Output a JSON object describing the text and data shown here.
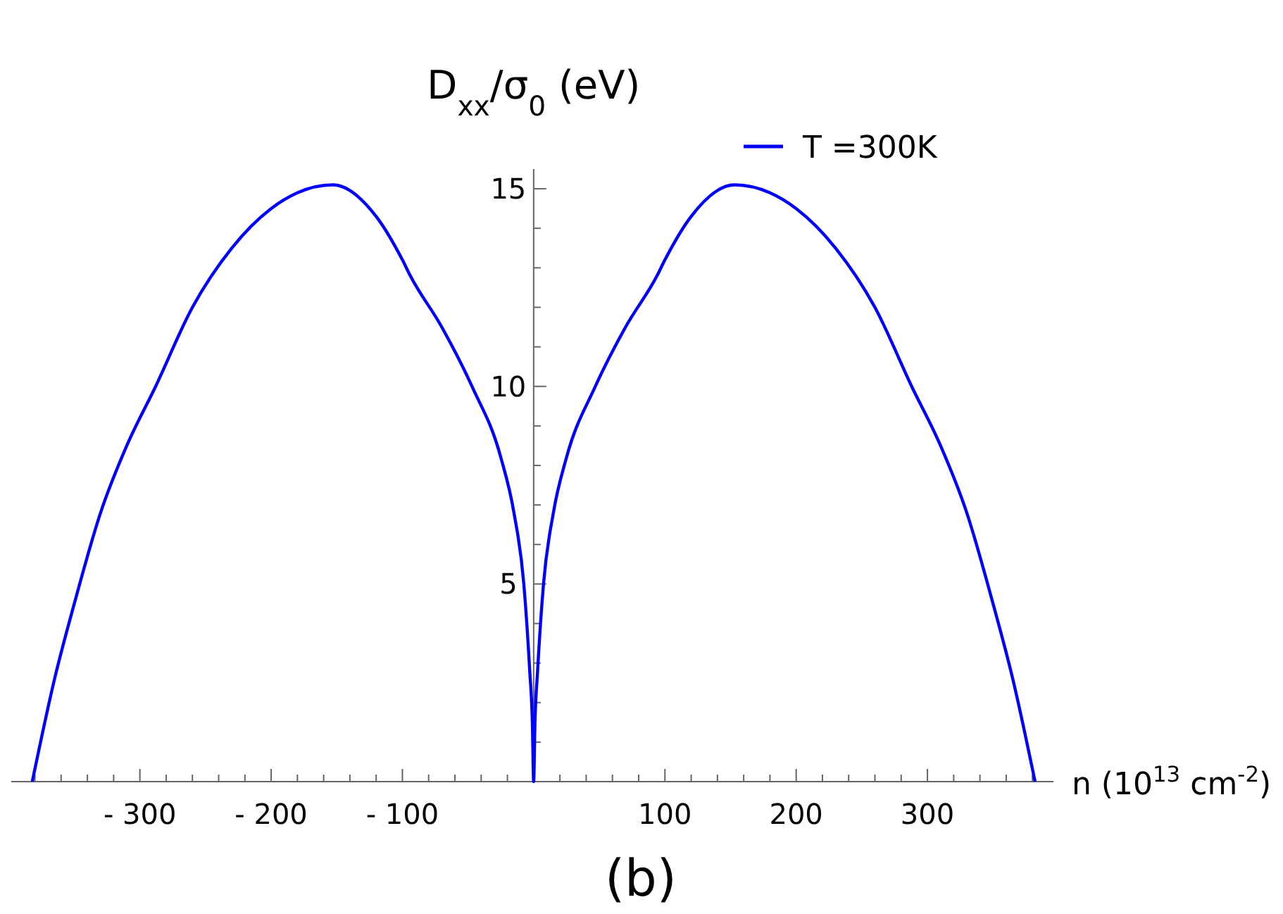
{
  "chart_data": {
    "type": "line",
    "ylabel": "D$_{xx}$/σ$_{0}$ (eV)",
    "xlabel": "n (10$^{13}$ cm$^{-2}$)",
    "annotations": [
      "(b)"
    ],
    "legend": "top right",
    "xlim": [
      -398,
      396
    ],
    "ylim": [
      0,
      15.5
    ],
    "xticks": [
      {
        "value": -380,
        "label": null
      },
      {
        "value": -360,
        "label": null
      },
      {
        "value": -340,
        "label": null
      },
      {
        "value": -320,
        "label": null
      },
      {
        "value": -300,
        "label": "- 300"
      },
      {
        "value": -280,
        "label": null
      },
      {
        "value": -260,
        "label": null
      },
      {
        "value": -240,
        "label": null
      },
      {
        "value": -220,
        "label": null
      },
      {
        "value": -200,
        "label": "- 200"
      },
      {
        "value": -180,
        "label": null
      },
      {
        "value": -160,
        "label": null
      },
      {
        "value": -140,
        "label": null
      },
      {
        "value": -120,
        "label": null
      },
      {
        "value": -100,
        "label": "- 100"
      },
      {
        "value": -80,
        "label": null
      },
      {
        "value": -60,
        "label": null
      },
      {
        "value": -40,
        "label": null
      },
      {
        "value": -20,
        "label": null
      },
      {
        "value": 20,
        "label": null
      },
      {
        "value": 40,
        "label": null
      },
      {
        "value": 60,
        "label": null
      },
      {
        "value": 80,
        "label": null
      },
      100,
      {
        "value": 120,
        "label": null
      },
      {
        "value": 140,
        "label": null
      },
      {
        "value": 160,
        "label": null
      },
      {
        "value": 180,
        "label": null
      },
      200,
      {
        "value": 220,
        "label": null
      },
      {
        "value": 240,
        "label": null
      },
      {
        "value": 260,
        "label": null
      },
      {
        "value": 280,
        "label": null
      },
      300,
      {
        "value": 320,
        "label": null
      },
      {
        "value": 340,
        "label": null
      },
      {
        "value": 360,
        "label": null
      },
      {
        "value": 380,
        "label": null
      }
    ],
    "yticks": [
      {
        "value": 1,
        "label": null
      },
      {
        "value": 2,
        "label": null
      },
      {
        "value": 3,
        "label": null
      },
      {
        "value": 4,
        "label": null
      },
      5,
      {
        "value": 6,
        "label": null
      },
      {
        "value": 7,
        "label": null
      },
      {
        "value": 8,
        "label": null
      },
      {
        "value": 9,
        "label": null
      },
      10,
      {
        "value": 11,
        "label": null
      },
      {
        "value": 12,
        "label": null
      },
      {
        "value": 13,
        "label": null
      },
      {
        "value": 14,
        "label": null
      },
      15
    ],
    "series": [
      {
        "name": "T =300K",
        "color": "#0000ff",
        "x": [
          -382,
          -365,
          -350,
          -330,
          -310,
          -288,
          -260,
          -230,
          -200,
          -180,
          -153,
          -120,
          -100,
          -94,
          -70,
          -47,
          -25,
          -15,
          -7.5,
          -3,
          -1,
          0,
          1,
          3,
          7.5,
          15,
          25,
          47,
          70,
          94,
          100,
          120,
          153,
          180,
          200,
          230,
          260,
          288,
          310,
          330,
          350,
          365,
          382
        ],
        "values": [
          0,
          2.6,
          4.5,
          6.8,
          8.5,
          10,
          12,
          13.5,
          14.5,
          14.9,
          15.1,
          14.3,
          13.2,
          12.8,
          11.5,
          10,
          8.2,
          6.8,
          5,
          2.8,
          1.5,
          0,
          1.5,
          2.8,
          5,
          6.8,
          8.2,
          10,
          11.5,
          12.8,
          13.2,
          14.3,
          15.1,
          14.9,
          14.5,
          13.5,
          12,
          10,
          8.5,
          6.8,
          4.5,
          2.6,
          0
        ]
      }
    ]
  }
}
